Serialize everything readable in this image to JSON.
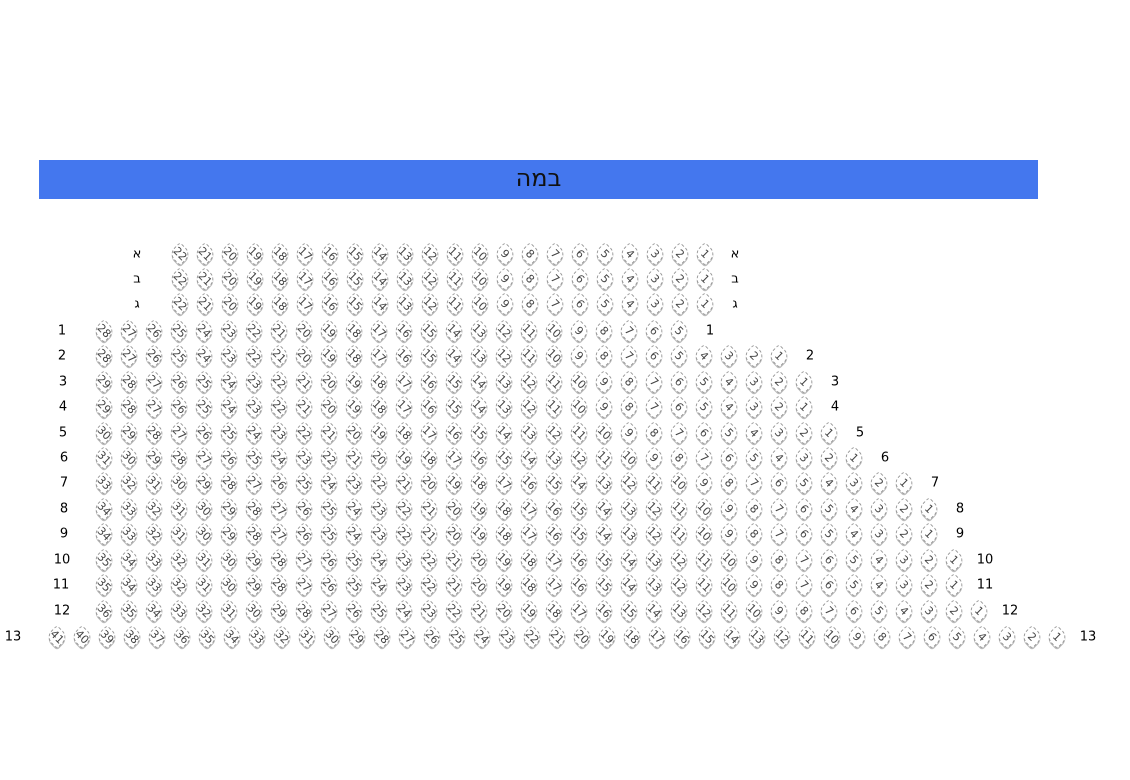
{
  "stage": {
    "label": "במה"
  },
  "seat_color": "#444444",
  "stage_color": "#4477ee",
  "rows": [
    {
      "label": "א",
      "max": 22,
      "min": 1
    },
    {
      "label": "ב",
      "max": 22,
      "min": 1
    },
    {
      "label": "ג",
      "max": 22,
      "min": 1
    },
    {
      "label": "1",
      "max": 28,
      "min": 5
    },
    {
      "label": "2",
      "max": 28,
      "min": 1
    },
    {
      "label": "3",
      "max": 29,
      "min": 1
    },
    {
      "label": "4",
      "max": 29,
      "min": 1
    },
    {
      "label": "5",
      "max": 30,
      "min": 1
    },
    {
      "label": "6",
      "max": 31,
      "min": 1
    },
    {
      "label": "7",
      "max": 33,
      "min": 1
    },
    {
      "label": "8",
      "max": 34,
      "min": 1
    },
    {
      "label": "9",
      "max": 34,
      "min": 1
    },
    {
      "label": "10",
      "max": 35,
      "min": 1
    },
    {
      "label": "11",
      "max": 35,
      "min": 1
    },
    {
      "label": "12",
      "max": 36,
      "min": 1
    },
    {
      "label": "13",
      "max": 41,
      "min": 1
    }
  ]
}
